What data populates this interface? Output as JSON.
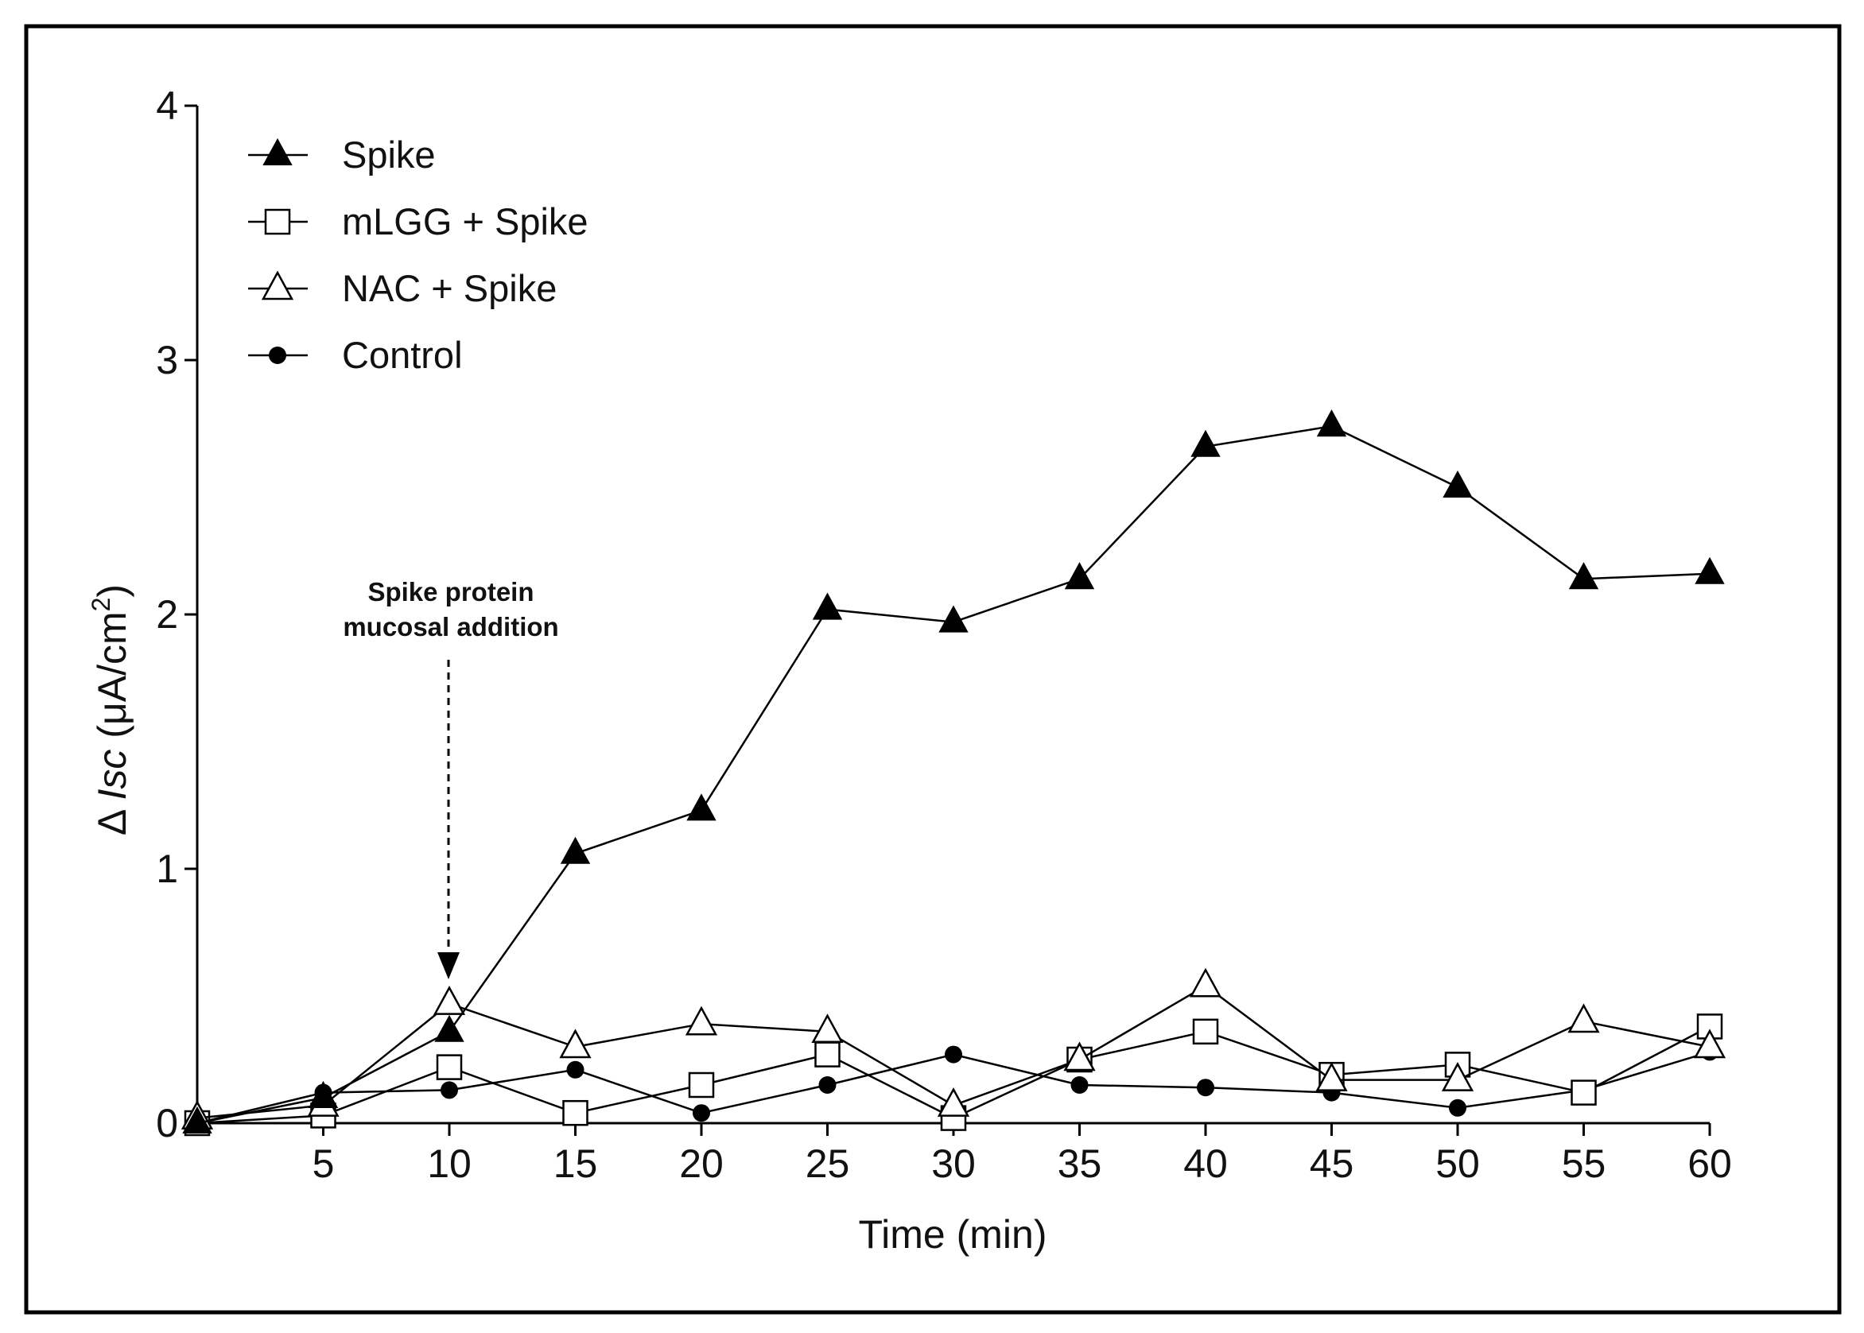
{
  "chart_data": {
    "type": "line",
    "title": "",
    "xlabel": "Time (min)",
    "ylabel": {
      "prefix": "Δ ",
      "italic": "Isc",
      "unit": " (μA/cm",
      "superscript": "2",
      "suffix": ")"
    },
    "xlim": [
      0,
      60
    ],
    "ylim": [
      0,
      4
    ],
    "x_ticks": [
      5,
      10,
      15,
      20,
      25,
      30,
      35,
      40,
      45,
      50,
      55,
      60
    ],
    "y_ticks": [
      0,
      1,
      2,
      3,
      4
    ],
    "x": [
      0,
      5,
      10,
      15,
      20,
      25,
      30,
      35,
      40,
      45,
      50,
      55,
      60
    ],
    "series": [
      {
        "name": "Spike",
        "marker": "filled-triangle",
        "values": [
          0.0,
          0.1,
          0.36,
          1.06,
          1.23,
          2.02,
          1.97,
          2.14,
          2.66,
          2.74,
          2.5,
          2.14,
          2.16
        ]
      },
      {
        "name": "mLGG + Spike",
        "marker": "open-square",
        "values": [
          0.0,
          0.03,
          0.22,
          0.04,
          0.15,
          0.27,
          0.02,
          0.25,
          0.36,
          0.19,
          0.23,
          0.12,
          0.38
        ]
      },
      {
        "name": "NAC + Spike",
        "marker": "open-triangle",
        "values": [
          0.02,
          0.07,
          0.47,
          0.3,
          0.39,
          0.36,
          0.07,
          0.25,
          0.54,
          0.17,
          0.17,
          0.4,
          0.3
        ]
      },
      {
        "name": "Control",
        "marker": "filled-circle",
        "values": [
          0.0,
          0.12,
          0.13,
          0.21,
          0.04,
          0.15,
          0.27,
          0.15,
          0.14,
          0.12,
          0.06,
          0.13,
          0.28
        ]
      }
    ],
    "annotations": [
      {
        "text_line1": "Spike protein",
        "text_line2": "mucosal addition",
        "at_x": 10,
        "style": "dashed-down-arrow"
      }
    ],
    "legend_placement": "top-left",
    "grid": false
  }
}
